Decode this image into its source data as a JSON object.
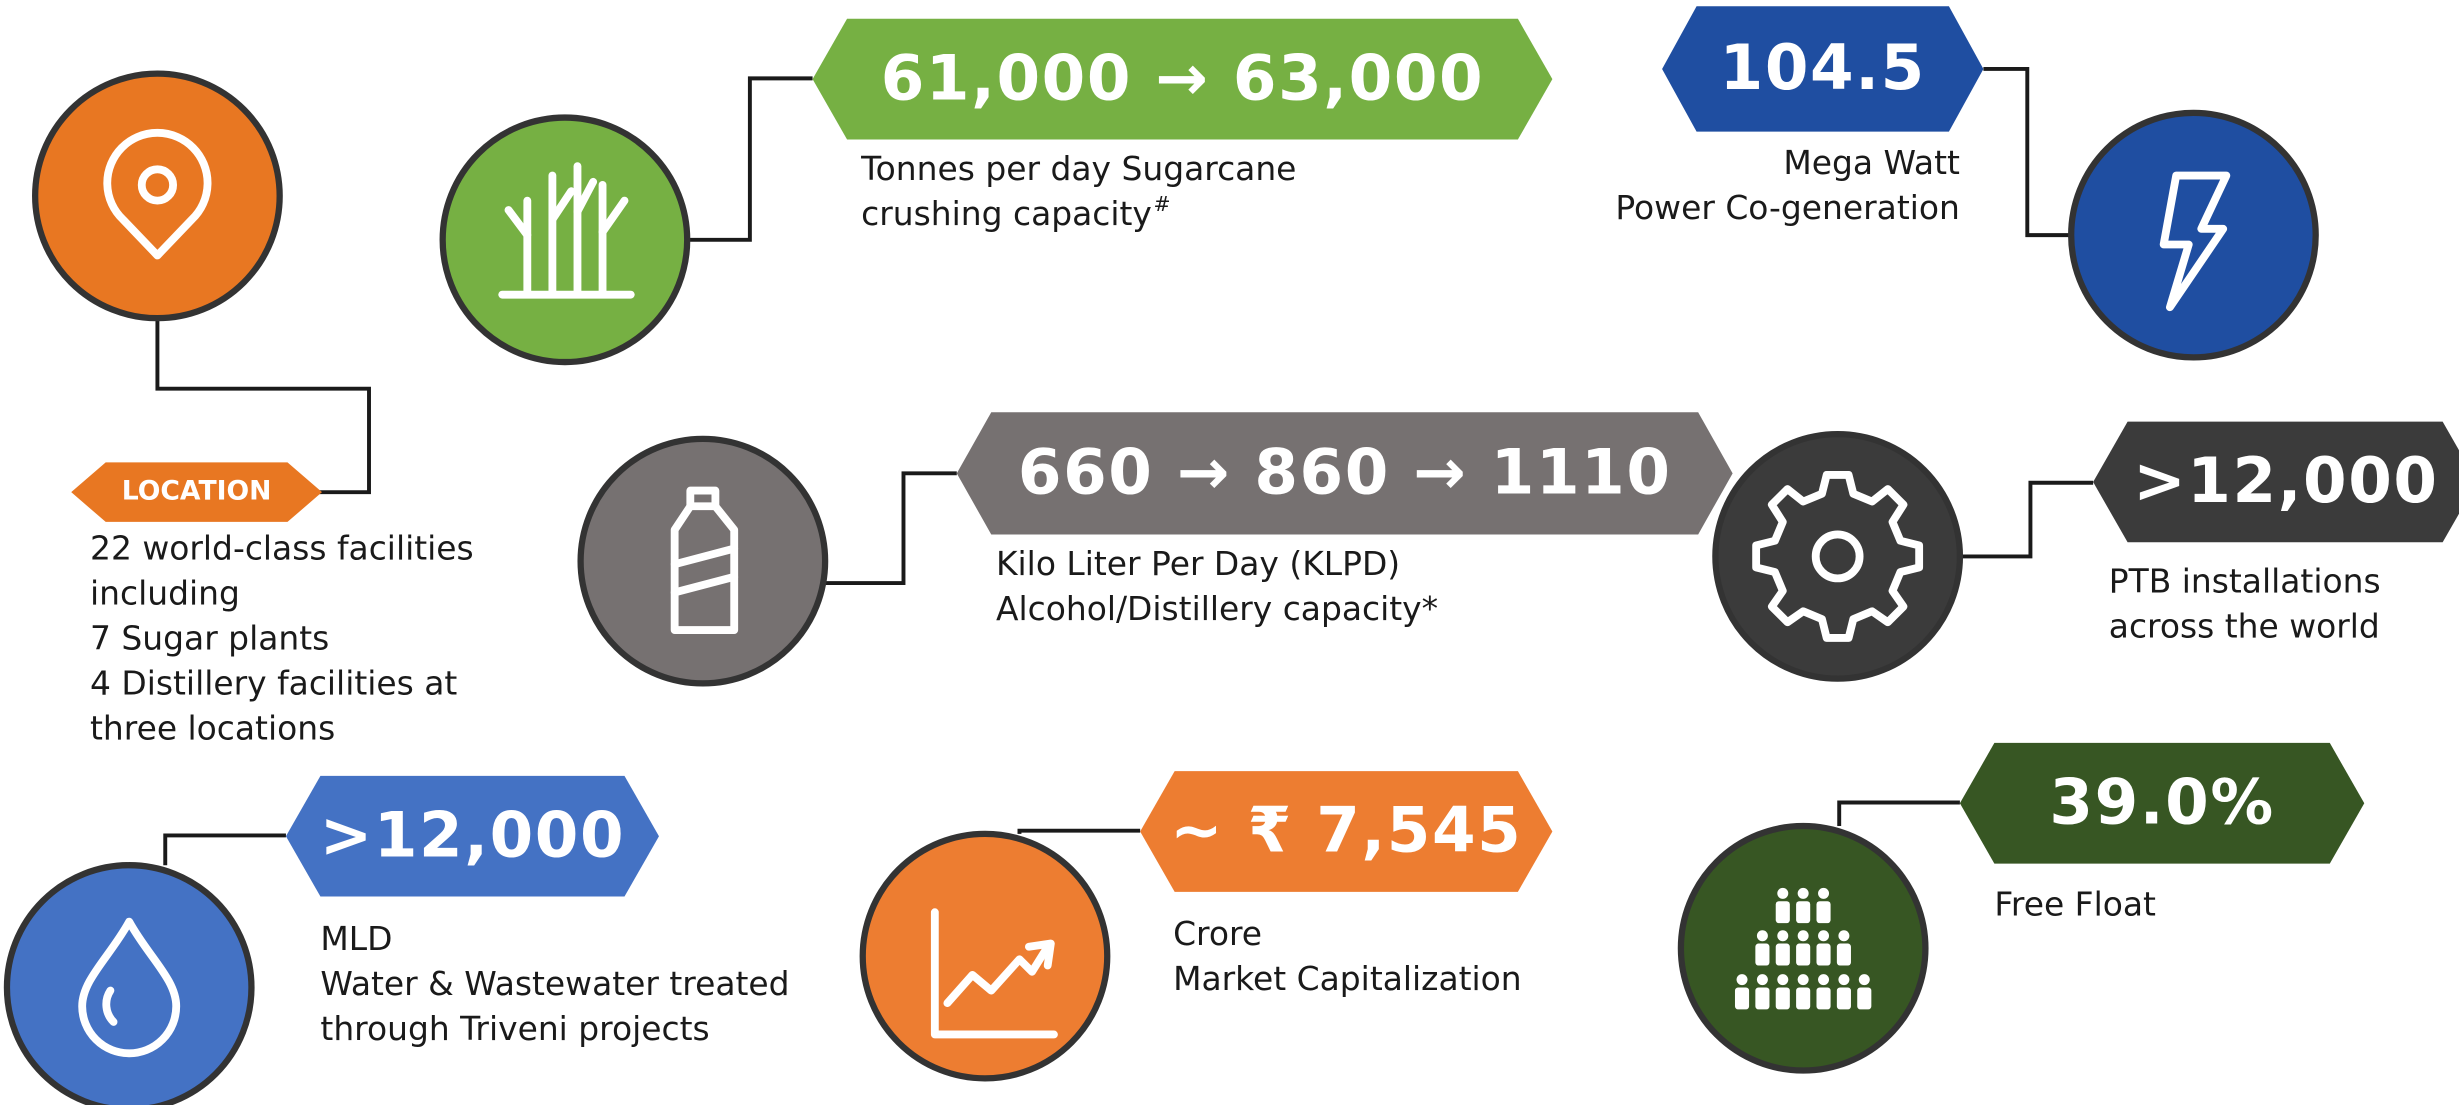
{
  "items": [
    {
      "badge": "LOCATION",
      "lines": [
        "22 world-class facilities",
        "including",
        "7 Sugar plants",
        "4 Distillery facilities at",
        "three locations"
      ]
    },
    {
      "value": "61,000 → 63,000",
      "lines": [
        "Tonnes per day Sugarcane",
        "crushing capacity"
      ],
      "sup": "#"
    },
    {
      "value": "104.5",
      "lines": [
        "Mega Watt",
        "Power Co-generation"
      ]
    },
    {
      "value": "660 → 860 → 1110",
      "lines": [
        "Kilo Liter Per Day (KLPD)",
        "Alcohol/Distillery capacity*"
      ]
    },
    {
      "value": ">12,000",
      "lines": [
        "PTB installations",
        "across the world"
      ]
    },
    {
      "value": ">12,000",
      "lines": [
        "MLD",
        "Water & Wastewater treated",
        "through Triveni projects"
      ]
    },
    {
      "value": "~ ₹ 7,545",
      "lines": [
        "Crore",
        "Market Capitalization"
      ]
    },
    {
      "value": "39.0%",
      "lines": [
        "Free Float"
      ]
    }
  ]
}
